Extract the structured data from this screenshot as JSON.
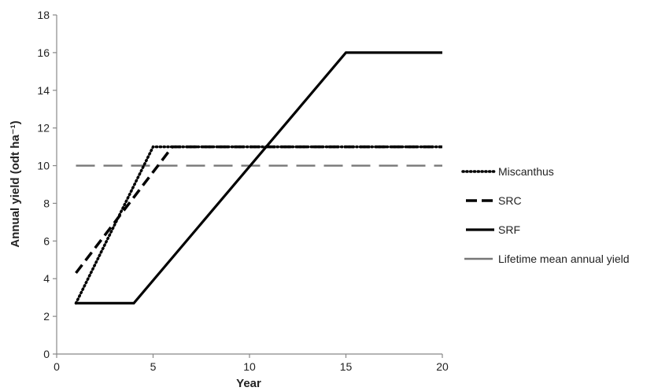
{
  "chart_data": {
    "type": "line",
    "xlabel": "Year",
    "ylabel": "Annual yield (odt ha⁻¹)",
    "xlim": [
      0,
      20
    ],
    "ylim": [
      0,
      18
    ],
    "x_ticks": [
      "0",
      "5",
      "10",
      "15",
      "20"
    ],
    "y_ticks": [
      "0",
      "2",
      "4",
      "6",
      "8",
      "10",
      "12",
      "14",
      "16",
      "18"
    ],
    "grid": false,
    "legend_position": "right",
    "series": [
      {
        "name": "Miscanthus",
        "style": "dotted",
        "color": "#000000",
        "points": [
          [
            1,
            2.7
          ],
          [
            5,
            11
          ],
          [
            20,
            11
          ]
        ]
      },
      {
        "name": "SRC",
        "style": "dashed",
        "color": "#000000",
        "points": [
          [
            1,
            4.3
          ],
          [
            6,
            11
          ],
          [
            20,
            11
          ]
        ]
      },
      {
        "name": "SRF",
        "style": "solid",
        "color": "#000000",
        "points": [
          [
            1,
            2.7
          ],
          [
            4,
            2.7
          ],
          [
            15,
            16
          ],
          [
            20,
            16
          ]
        ]
      },
      {
        "name": "Lifetime mean annual yield",
        "style": "long-dashed",
        "color": "#777777",
        "points": [
          [
            1,
            10
          ],
          [
            20,
            10
          ]
        ]
      }
    ]
  }
}
